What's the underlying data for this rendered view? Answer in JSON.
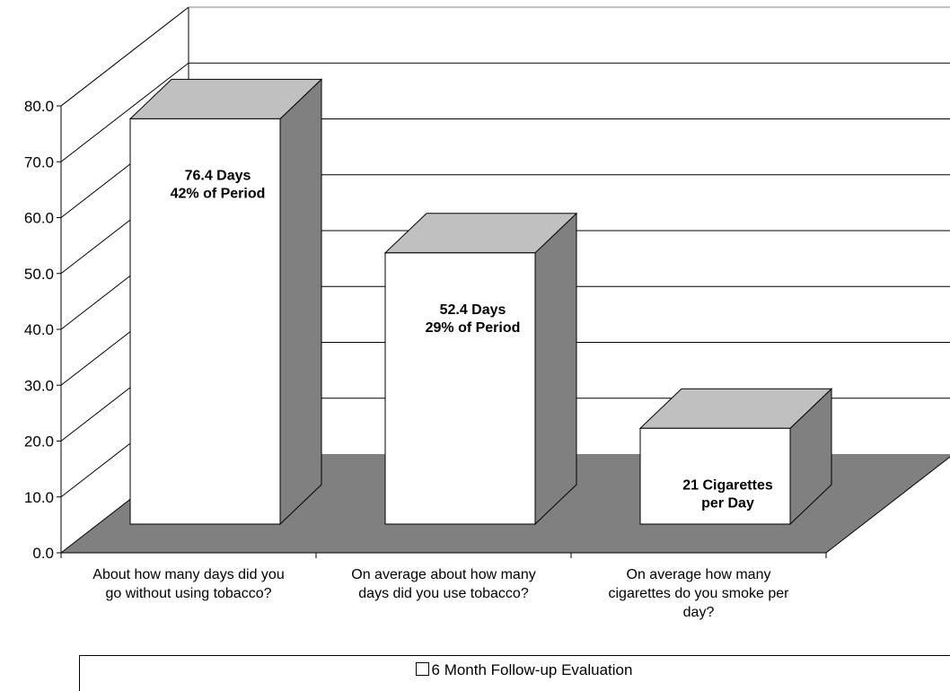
{
  "chart_data": {
    "type": "bar",
    "categories": [
      "About how many days did you go without using tobacco?",
      "On average about how many days did you use tobacco?",
      "On average how many cigarettes do you smoke per day?"
    ],
    "categories_lines": [
      [
        "About how many days did you",
        "go without using tobacco?"
      ],
      [
        "On average about how many",
        "days did you use tobacco?"
      ],
      [
        "On average how many",
        "cigarettes do you smoke per",
        "day?"
      ]
    ],
    "series": [
      {
        "name": "6 Month Follow-up Evaluation",
        "values": [
          76.4,
          52.4,
          21
        ]
      }
    ],
    "data_labels": [
      [
        "76.4 Days",
        "42% of Period"
      ],
      [
        "52.4 Days",
        "29% of Period"
      ],
      [
        "21 Cigarettes",
        "per Day"
      ]
    ],
    "yticks": [
      "0.0",
      "10.0",
      "20.0",
      "30.0",
      "40.0",
      "50.0",
      "60.0",
      "70.0",
      "80.0"
    ],
    "ylim": [
      0,
      80
    ],
    "legend_position": "bottom",
    "grid": true,
    "three_d": true,
    "colors": {
      "bar_front": "#ffffff",
      "bar_top": "#c0c0c0",
      "bar_side": "#808080",
      "floor": "#808080",
      "gridline": "#000000"
    }
  }
}
